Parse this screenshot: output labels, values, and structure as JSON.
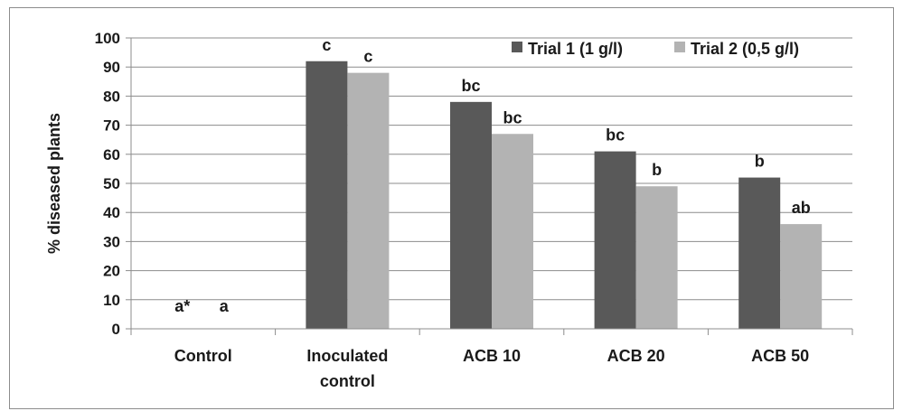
{
  "chart_data": {
    "type": "bar",
    "categories": [
      [
        "Control"
      ],
      [
        "Inoculated",
        "control"
      ],
      [
        "ACB 10"
      ],
      [
        "ACB 20"
      ],
      [
        "ACB 50"
      ]
    ],
    "series": [
      {
        "name": "Trial 1 (1 g/l)",
        "color": "#595959",
        "values": [
          0,
          92,
          78,
          61,
          52
        ],
        "labels": [
          "a*",
          "c",
          "bc",
          "bc",
          "b"
        ]
      },
      {
        "name": "Trial 2 (0,5 g/l)",
        "color": "#b3b3b3",
        "values": [
          0,
          88,
          67,
          49,
          36
        ],
        "labels": [
          "a",
          "c",
          "bc",
          "b",
          "ab"
        ]
      }
    ],
    "ylabel": "% diseased plants",
    "ylim": [
      0,
      100
    ],
    "yticks": [
      0,
      10,
      20,
      30,
      40,
      50,
      60,
      70,
      80,
      90,
      100
    ],
    "grid": true,
    "legend_position": "top-right"
  }
}
